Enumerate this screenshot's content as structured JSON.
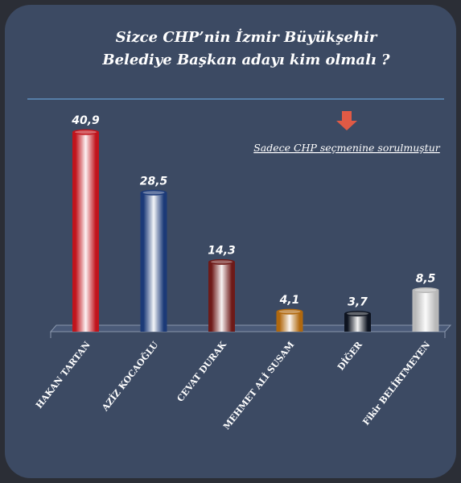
{
  "header": {
    "title_line1": "Sizce CHP’nin İzmir Büyükşehir",
    "title_line2": "Belediye Başkan adayı kim olmalı ?",
    "note": "Sadece CHP seçmenine sorulmuştur"
  },
  "colors": {
    "background": "#3c4a63",
    "outer": "#2b2e36",
    "divider": "#5f8fc0",
    "arrow": "#e05a45",
    "text": "#ffffff"
  },
  "icons": {
    "note_marker": "arrow-down-icon"
  },
  "chart_data": {
    "type": "bar",
    "title": "Sizce CHP’nin İzmir Büyükşehir Belediye Başkan adayı kim olmalı ?",
    "categories": [
      "HAKAN TARTAN",
      "AZİZ KOCAOĞLU",
      "CEVAT DURAK",
      "MEHMET ALİ SUSAM",
      "DİĞER",
      "Fikir BELİRTMEYEN"
    ],
    "values": [
      40.9,
      28.5,
      14.3,
      4.1,
      3.7,
      8.5
    ],
    "value_labels": [
      "40,9",
      "28,5",
      "14,3",
      "4,1",
      "3,7",
      "8,5"
    ],
    "colors": [
      "#c0141c",
      "#1c3a78",
      "#6e1a18",
      "#b0680e",
      "#0e1420",
      "#b8b8b8"
    ],
    "xlabel": "",
    "ylabel": "",
    "ylim": [
      0,
      41
    ],
    "grid": false,
    "legend": "none"
  }
}
